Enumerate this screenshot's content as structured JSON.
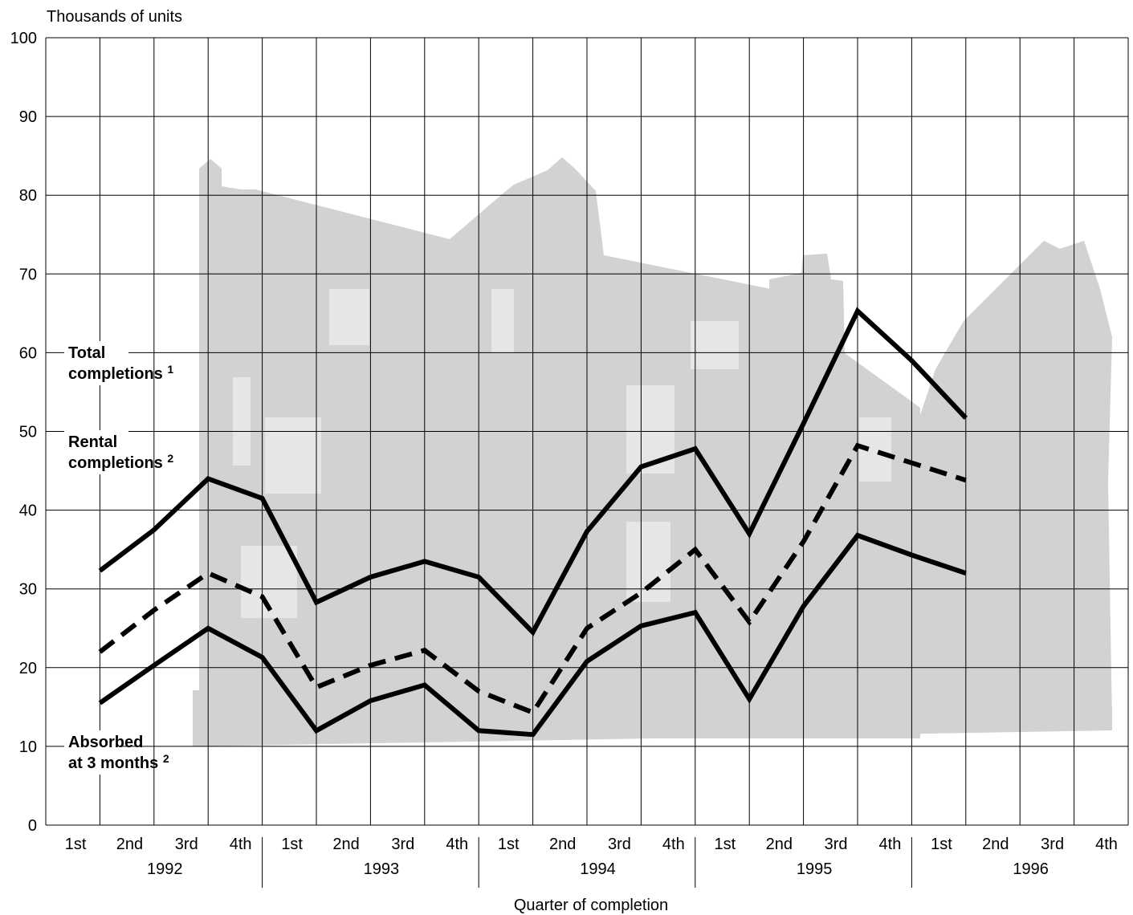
{
  "chart_data": {
    "type": "line",
    "ylabel": "Thousands of units",
    "xlabel": "Quarter of completion",
    "ylim": [
      0,
      100
    ],
    "yticks": [
      "0",
      "10",
      "20",
      "30",
      "40",
      "50",
      "60",
      "70",
      "80",
      "90",
      "100"
    ],
    "quarters": [
      "1st",
      "2nd",
      "3rd",
      "4th"
    ],
    "years": [
      "1992",
      "1993",
      "1994",
      "1995",
      "1996"
    ],
    "grid": true,
    "series": [
      {
        "name": "Total completions",
        "label_line1": "Total",
        "label_line2": "completions",
        "footnote": "1",
        "style": "solid",
        "values": [
          32.3,
          37.5,
          44,
          41.5,
          28.3,
          31.5,
          33.5,
          31.5,
          24.5,
          37.3,
          45.5,
          47.8,
          37,
          51,
          65.3,
          59,
          51.7
        ]
      },
      {
        "name": "Rental completions",
        "label_line1": "Rental",
        "label_line2": "completions",
        "footnote": "2",
        "style": "dashed",
        "values": [
          22,
          27.3,
          32,
          29,
          17.5,
          20.3,
          22.2,
          17,
          14.3,
          25,
          29.5,
          35,
          25.8,
          36,
          48.2,
          46,
          43.8
        ]
      },
      {
        "name": "Absorbed at 3 months",
        "label_line1": "Absorbed",
        "label_line2": "at 3 months",
        "footnote": "2",
        "style": "solid",
        "values": [
          15.5,
          20.3,
          25,
          21.3,
          12,
          15.8,
          17.8,
          12,
          11.5,
          20.8,
          25.3,
          27,
          16,
          27.8,
          36.8,
          34.3,
          32
        ]
      }
    ]
  }
}
